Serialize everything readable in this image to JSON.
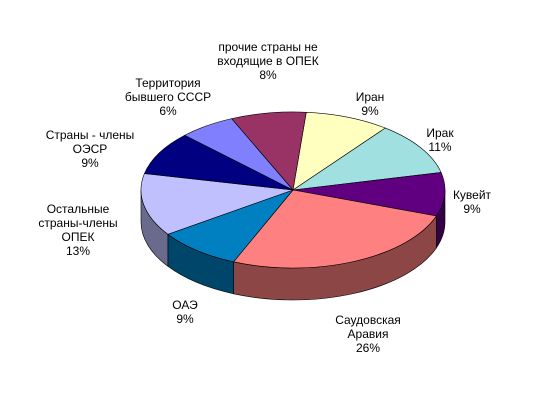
{
  "chart_data": {
    "type": "pie3d",
    "categories": [
      "Иран",
      "Ирак",
      "Кувейт",
      "Саудовская Аравия",
      "ОАЭ",
      "Остальные страны-члены ОПЕК",
      "Страны - члены ОЭСР",
      "Территория бывшего СССР",
      "прочие страны не входящие в ОПЕК"
    ],
    "values": [
      9,
      11,
      9,
      26,
      9,
      13,
      9,
      6,
      8
    ],
    "value_labels": [
      "9%",
      "11%",
      "9%",
      "26%",
      "9%",
      "13%",
      "9%",
      "6%",
      "8%"
    ],
    "colors": [
      "#ffffc0",
      "#a0e0e0",
      "#600080",
      "#ff8080",
      "#0080c0",
      "#c0c0ff",
      "#000080",
      "#8080ff",
      "#993366"
    ]
  }
}
